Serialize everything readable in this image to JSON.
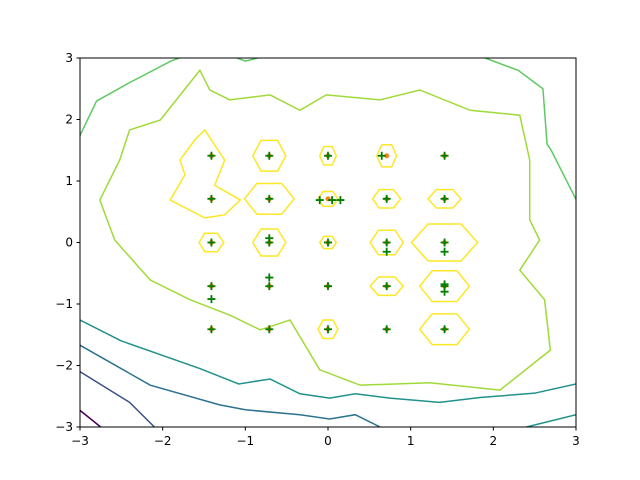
{
  "chart_data": {
    "type": "contour-scatter",
    "xlim": [
      -3,
      3
    ],
    "ylim": [
      -3,
      3
    ],
    "xticks": [
      {
        "value": -3,
        "label": "−3"
      },
      {
        "value": -2,
        "label": "−2"
      },
      {
        "value": -1,
        "label": "−1"
      },
      0,
      1,
      2,
      3
    ],
    "yticks": [
      {
        "value": -3,
        "label": "−3"
      },
      {
        "value": -2,
        "label": "−2"
      },
      {
        "value": -1,
        "label": "−1"
      },
      0,
      1,
      2,
      3
    ],
    "contours": [
      {
        "color": "#440154",
        "closed": false,
        "x": [
          -3,
          -2.75
        ],
        "y": [
          -2.73,
          -3
        ]
      },
      {
        "color": "#3b528b",
        "closed": false,
        "x": [
          -3,
          -2.4,
          -2.1
        ],
        "y": [
          -2.1,
          -2.6,
          -3
        ]
      },
      {
        "color": "#2c728e",
        "closed": false,
        "x": [
          -3,
          -2.15,
          -1.31,
          -1.0,
          -0.34,
          0.02,
          0.33,
          0.63
        ],
        "y": [
          -1.67,
          -2.32,
          -2.64,
          -2.72,
          -2.8,
          -2.87,
          -2.8,
          -3
        ]
      },
      {
        "color": "#21918c",
        "closed": false,
        "x": [
          -3,
          -2.5,
          -1.55,
          -1.08,
          -0.7,
          -0.34,
          0.02,
          0.33,
          0.75,
          1.35,
          1.84,
          2.5,
          3
        ],
        "y": [
          -1.26,
          -1.6,
          -2.05,
          -2.3,
          -2.22,
          -2.46,
          -2.53,
          -2.46,
          -2.53,
          -2.6,
          -2.52,
          -2.45,
          -2.3
        ]
      },
      {
        "color": "#21918c",
        "closed": false,
        "x": [
          2.4,
          3
        ],
        "y": [
          -3,
          -2.8
        ]
      },
      {
        "color": "#5ec962",
        "closed": false,
        "x": [
          -3,
          -2.8,
          -2.4,
          -1.9,
          -1.8
        ],
        "y": [
          1.74,
          2.3,
          2.6,
          2.95,
          3
        ]
      },
      {
        "color": "#5ec962",
        "closed": false,
        "x": [
          -1.1,
          -1.0,
          -0.85
        ],
        "y": [
          3,
          2.95,
          3
        ]
      },
      {
        "color": "#5ec962",
        "closed": false,
        "x": [
          1.9,
          2.3,
          2.6,
          2.65,
          2.7,
          3
        ],
        "y": [
          3,
          2.8,
          2.5,
          1.6,
          1.5,
          0.7
        ]
      },
      {
        "color": "#a0da39",
        "closed": true,
        "x": [
          -1.55,
          -1.43,
          -1.19,
          -0.7,
          -0.34,
          -0.02,
          0.63,
          1.11,
          1.72,
          2.32,
          2.44,
          2.44,
          2.56,
          2.32,
          2.62,
          2.69,
          2.08,
          1.23,
          0.39,
          -0.1,
          -0.46,
          -0.82,
          -1.19,
          -1.67,
          -2.15,
          -2.58,
          -2.76,
          -2.52,
          -2.4,
          -2.03
        ],
        "y": [
          2.8,
          2.48,
          2.32,
          2.4,
          2.15,
          2.4,
          2.32,
          2.48,
          2.15,
          2.07,
          1.34,
          0.37,
          0.04,
          -0.45,
          -0.93,
          -1.75,
          -2.4,
          -2.28,
          -2.32,
          -2.07,
          -1.26,
          -1.42,
          -1.18,
          -0.93,
          -0.61,
          0.04,
          0.69,
          1.34,
          1.83,
          1.99
        ]
      },
      {
        "color": "#fde725",
        "closed": true,
        "x": [
          -1.49,
          -1.25,
          -1.37,
          -1.06,
          -1.25,
          -1.49,
          -1.91,
          -1.73,
          -1.79,
          -1.61
        ],
        "y": [
          1.83,
          1.34,
          0.93,
          0.69,
          0.45,
          0.4,
          0.69,
          1.1,
          1.34,
          1.67
        ]
      },
      {
        "color": "#fde725",
        "closed": true,
        "x": [
          -0.51,
          -0.61,
          -0.81,
          -0.91,
          -0.81,
          -0.61
        ],
        "y": [
          1.41,
          1.66,
          1.66,
          1.41,
          1.16,
          1.16
        ]
      },
      {
        "color": "#fde725",
        "closed": true,
        "x": [
          -0.41,
          -0.56,
          -0.86,
          -1.01,
          -0.86,
          -0.56
        ],
        "y": [
          0.71,
          0.96,
          0.96,
          0.71,
          0.46,
          0.46
        ]
      },
      {
        "color": "#fde725",
        "closed": true,
        "x": [
          -0.51,
          -0.61,
          -0.81,
          -0.91,
          -0.81,
          -0.61
        ],
        "y": [
          0,
          0.22,
          0.22,
          0,
          -0.22,
          -0.22
        ]
      },
      {
        "color": "#fde725",
        "closed": true,
        "x": [
          -1.26,
          -1.34,
          -1.49,
          -1.56,
          -1.49,
          -1.34
        ],
        "y": [
          0,
          0.15,
          0.15,
          0,
          -0.15,
          -0.15
        ]
      },
      {
        "color": "#fde725",
        "closed": true,
        "x": [
          0.1,
          0.05,
          -0.05,
          -0.1,
          -0.05,
          0.05
        ],
        "y": [
          1.41,
          1.56,
          1.56,
          1.41,
          1.26,
          1.26
        ]
      },
      {
        "color": "#fde725",
        "closed": true,
        "x": [
          0.12,
          0.06,
          -0.06,
          -0.12,
          -0.06,
          0.06
        ],
        "y": [
          0.71,
          0.83,
          0.83,
          0.71,
          0.59,
          0.59
        ]
      },
      {
        "color": "#fde725",
        "closed": true,
        "x": [
          0.1,
          0.05,
          -0.05,
          -0.1,
          -0.05,
          0.05
        ],
        "y": [
          0,
          0.1,
          0.1,
          0,
          -0.1,
          -0.1
        ]
      },
      {
        "color": "#fde725",
        "closed": true,
        "x": [
          0.83,
          0.77,
          0.65,
          0.59,
          0.65,
          0.77
        ],
        "y": [
          1.41,
          1.59,
          1.59,
          1.41,
          1.23,
          1.23
        ]
      },
      {
        "color": "#fde725",
        "closed": true,
        "x": [
          0.88,
          0.79,
          0.62,
          0.54,
          0.62,
          0.79
        ],
        "y": [
          0.71,
          0.86,
          0.86,
          0.71,
          0.56,
          0.56
        ]
      },
      {
        "color": "#fde725",
        "closed": true,
        "x": [
          0.91,
          0.81,
          0.61,
          0.51,
          0.61,
          0.81
        ],
        "y": [
          0,
          0.2,
          0.2,
          0,
          -0.2,
          -0.2
        ]
      },
      {
        "color": "#fde725",
        "closed": true,
        "x": [
          0.91,
          0.81,
          0.61,
          0.51,
          0.61,
          0.81
        ],
        "y": [
          -0.71,
          -0.56,
          -0.56,
          -0.71,
          -0.86,
          -0.86
        ]
      },
      {
        "color": "#fde725",
        "closed": true,
        "x": [
          1.61,
          1.51,
          1.31,
          1.21,
          1.31,
          1.51
        ],
        "y": [
          0.71,
          0.86,
          0.86,
          0.71,
          0.56,
          0.56
        ]
      },
      {
        "color": "#fde725",
        "closed": true,
        "x": [
          1.81,
          1.61,
          1.21,
          1.01,
          1.21,
          1.61
        ],
        "y": [
          0,
          0.3,
          0.3,
          0,
          -0.3,
          -0.3
        ]
      },
      {
        "color": "#fde725",
        "closed": true,
        "x": [
          1.71,
          1.56,
          1.26,
          1.11,
          1.26,
          1.56
        ],
        "y": [
          -0.71,
          -0.46,
          -0.46,
          -0.71,
          -0.96,
          -0.96
        ]
      },
      {
        "color": "#fde725",
        "closed": true,
        "x": [
          1.71,
          1.56,
          1.26,
          1.11,
          1.26,
          1.56
        ],
        "y": [
          -1.41,
          -1.16,
          -1.16,
          -1.41,
          -1.66,
          -1.66
        ]
      },
      {
        "color": "#fde725",
        "closed": true,
        "x": [
          0.12,
          0.06,
          -0.06,
          -0.12,
          -0.06,
          0.06
        ],
        "y": [
          -1.41,
          -1.26,
          -1.26,
          -1.41,
          -1.56,
          -1.56
        ]
      }
    ],
    "scatter": [
      {
        "color": "#ff7f0e",
        "marker": "dot",
        "x": [
          -1.41,
          -0.71,
          0,
          0.71,
          1.41,
          -1.41,
          -0.71,
          0,
          0.71,
          1.41,
          -1.41,
          -0.71,
          0,
          0.71,
          1.41,
          -1.41,
          -0.71,
          0,
          0.71,
          1.41,
          -1.41,
          -0.71,
          0,
          0.71,
          1.41
        ],
        "y": [
          1.41,
          1.41,
          1.41,
          1.41,
          1.41,
          0.71,
          0.71,
          0.71,
          0.71,
          0.71,
          0,
          0,
          0,
          0,
          0,
          -0.71,
          -0.71,
          -0.71,
          -0.71,
          -0.71,
          -1.41,
          -1.41,
          -1.41,
          -1.41,
          -1.41
        ]
      },
      {
        "color": "#007f00",
        "marker": "plus",
        "x": [
          -1.41,
          -0.71,
          0,
          0.65,
          1.41,
          -1.41,
          -0.71,
          -0.1,
          0.05,
          0.15,
          0.71,
          1.41,
          -1.41,
          -0.71,
          -0.71,
          0,
          0.71,
          0.71,
          1.41,
          1.41,
          -1.41,
          -1.41,
          -0.71,
          -0.71,
          0,
          0.71,
          1.41,
          1.41,
          1.41,
          -1.41,
          -0.71,
          0,
          0.71,
          1.41
        ],
        "y": [
          1.41,
          1.41,
          1.41,
          1.41,
          1.41,
          0.71,
          0.71,
          0.69,
          0.69,
          0.69,
          0.71,
          0.71,
          0,
          0,
          0.07,
          0,
          0,
          -0.15,
          0,
          -0.15,
          -0.71,
          -0.92,
          -0.71,
          -0.57,
          -0.71,
          -0.71,
          -0.71,
          -0.8,
          -0.68,
          -1.41,
          -1.41,
          -1.41,
          -1.41,
          -1.41
        ]
      }
    ]
  }
}
